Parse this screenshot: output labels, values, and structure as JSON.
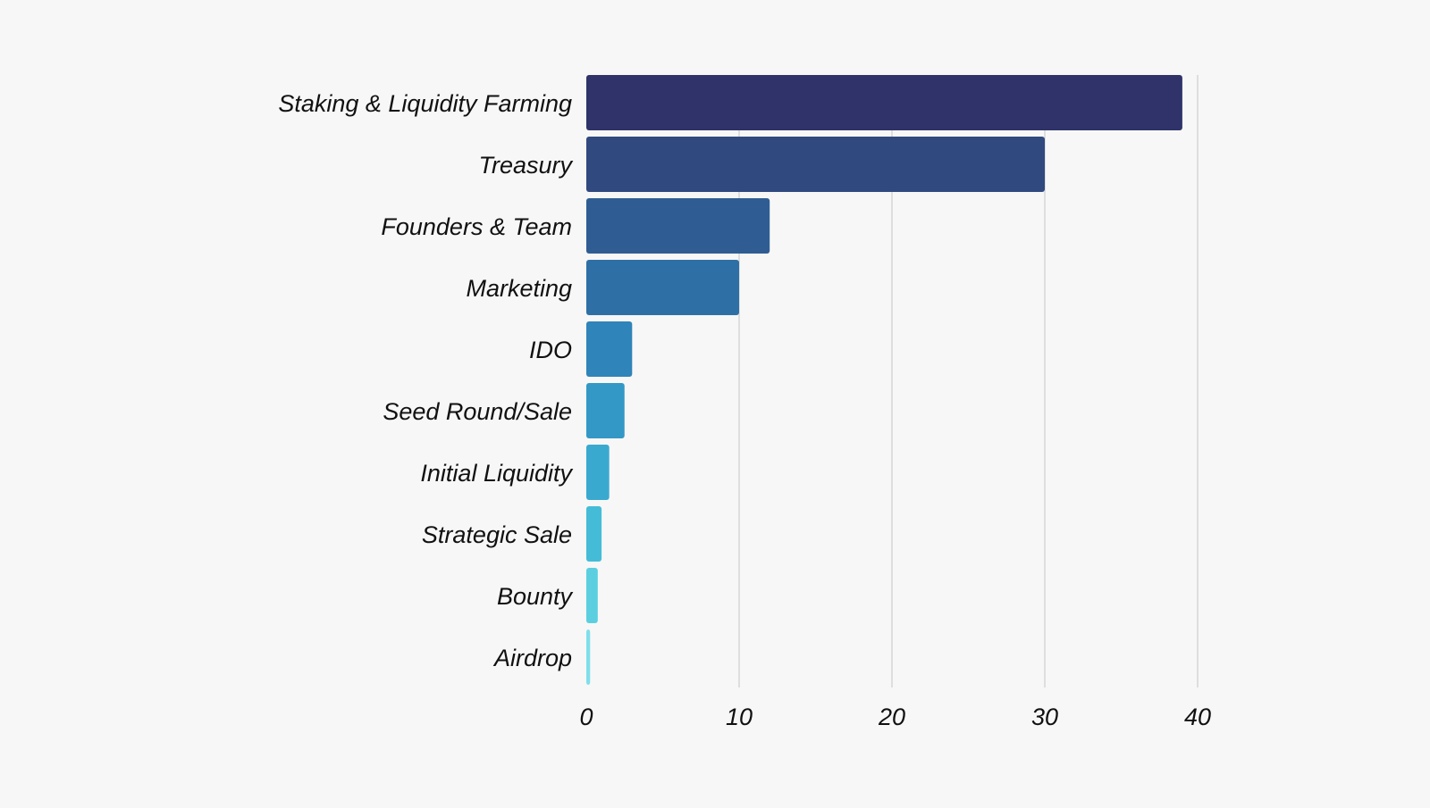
{
  "chart_data": {
    "type": "bar",
    "orientation": "horizontal",
    "categories": [
      "Staking & Liquidity Farming",
      "Treasury",
      "Founders & Team",
      "Marketing",
      "IDO",
      "Seed Round/Sale",
      "Initial Liquidity",
      "Strategic Sale",
      "Bounty",
      "Airdrop"
    ],
    "values": [
      39,
      30,
      12,
      10,
      3,
      2.5,
      1.5,
      1,
      0.75,
      0.25
    ],
    "colors": [
      "#2f3369",
      "#30497f",
      "#2f5d93",
      "#2e70a6",
      "#2f84b9",
      "#3398c5",
      "#3aa9cf",
      "#45bcd7",
      "#5bcfe0",
      "#7fdfea"
    ],
    "xlim": [
      0,
      40
    ],
    "xticks": [
      0,
      10,
      20,
      30,
      40
    ],
    "title": "",
    "xlabel": "",
    "ylabel": "",
    "grid": true,
    "legend": "none"
  }
}
